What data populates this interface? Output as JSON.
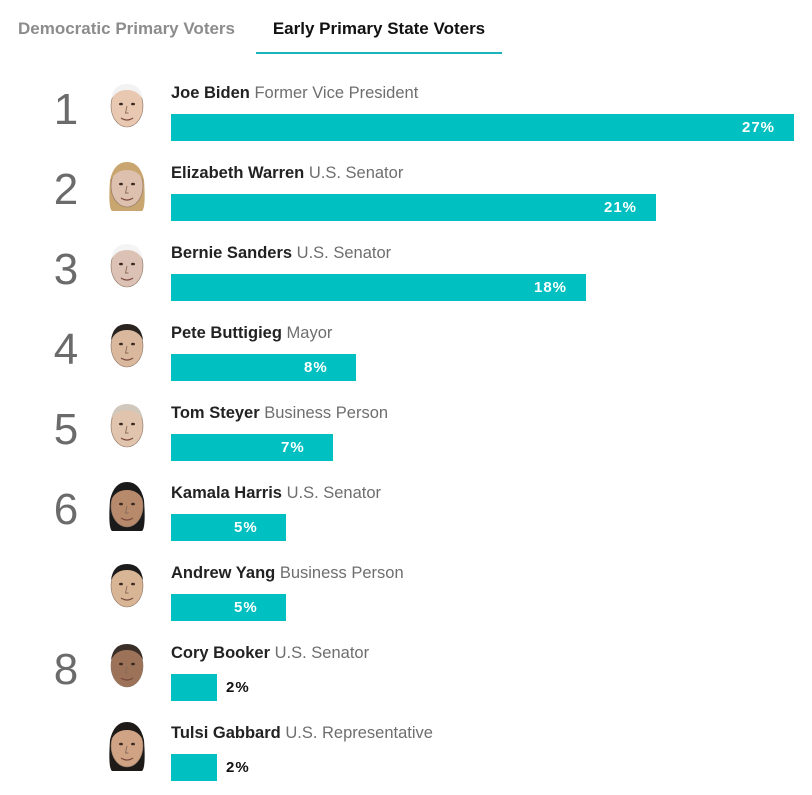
{
  "tabs": [
    {
      "label": "Democratic Primary Voters",
      "active": false
    },
    {
      "label": "Early Primary State Voters",
      "active": true
    }
  ],
  "colors": {
    "bar": "#00c0c2",
    "tab_underline": "#1ab4bd"
  },
  "chart_data": {
    "type": "bar",
    "orientation": "horizontal",
    "max_value": 27,
    "categories": [
      "Joe Biden",
      "Elizabeth Warren",
      "Bernie Sanders",
      "Pete Buttigieg",
      "Tom Steyer",
      "Kamala Harris",
      "Andrew Yang",
      "Cory Booker",
      "Tulsi Gabbard"
    ],
    "values": [
      27,
      21,
      18,
      8,
      7,
      5,
      5,
      2,
      2
    ],
    "candidates": [
      {
        "rank": "1",
        "name": "Joe Biden",
        "role": "Former Vice President",
        "value": 27,
        "label": "27%",
        "skin": "#e8c8b0",
        "hair": "#f2f2f2",
        "avatar_icon": "joe-biden-portrait-icon"
      },
      {
        "rank": "2",
        "name": "Elizabeth Warren",
        "role": "U.S. Senator",
        "value": 21,
        "label": "21%",
        "skin": "#ddc0ad",
        "hair": "#c9a66f",
        "avatar_icon": "elizabeth-warren-portrait-icon"
      },
      {
        "rank": "3",
        "name": "Bernie Sanders",
        "role": "U.S. Senator",
        "value": 18,
        "label": "18%",
        "skin": "#dcc2b4",
        "hair": "#f4f4f4",
        "avatar_icon": "bernie-sanders-portrait-icon"
      },
      {
        "rank": "4",
        "name": "Pete Buttigieg",
        "role": "Mayor",
        "value": 8,
        "label": "8%",
        "skin": "#d9b89e",
        "hair": "#2a2420",
        "avatar_icon": "pete-buttigieg-portrait-icon"
      },
      {
        "rank": "5",
        "name": "Tom Steyer",
        "role": "Business Person",
        "value": 7,
        "label": "7%",
        "skin": "#e0c4ad",
        "hair": "#d0c8bc",
        "avatar_icon": "tom-steyer-portrait-icon"
      },
      {
        "rank": "6",
        "name": "Kamala Harris",
        "role": "U.S. Senator",
        "value": 5,
        "label": "5%",
        "skin": "#b88a6c",
        "hair": "#1a1a1a",
        "avatar_icon": "kamala-harris-portrait-icon"
      },
      {
        "rank": "",
        "name": "Andrew Yang",
        "role": "Business Person",
        "value": 5,
        "label": "5%",
        "skin": "#d8b595",
        "hair": "#1c1c1c",
        "avatar_icon": "andrew-yang-portrait-icon"
      },
      {
        "rank": "8",
        "name": "Cory Booker",
        "role": "U.S. Senator",
        "value": 2,
        "label": "2%",
        "skin": "#9c7258",
        "hair": "#3a2e28",
        "avatar_icon": "cory-booker-portrait-icon"
      },
      {
        "rank": "",
        "name": "Tulsi Gabbard",
        "role": "U.S. Representative",
        "value": 2,
        "label": "2%",
        "skin": "#cfa384",
        "hair": "#1e1a18",
        "avatar_icon": "tulsi-gabbard-portrait-icon"
      }
    ]
  }
}
